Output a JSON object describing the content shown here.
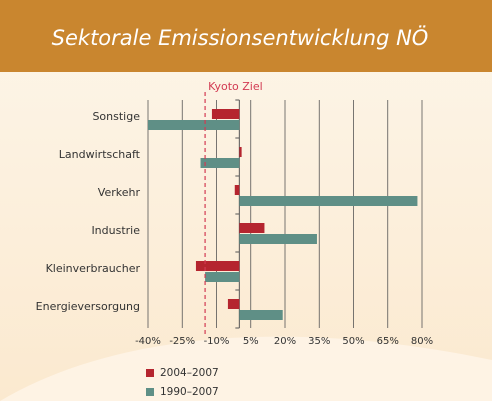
{
  "chart_data": {
    "type": "hbar",
    "title": "Sektorale Emissionsentwicklung NÖ",
    "categories": [
      "Sonstige",
      "Landwirtschaft",
      "Verkehr",
      "Industrie",
      "Kleinverbraucher",
      "Energieversorgung"
    ],
    "series": [
      {
        "name": "2004–2007",
        "color": "#b5252f",
        "values": [
          -12,
          1,
          -2,
          11,
          -19,
          -5
        ]
      },
      {
        "name": "1990–2007",
        "color": "#5f8f86",
        "values": [
          -40,
          -17,
          78,
          34,
          -15,
          19
        ]
      }
    ],
    "xlim": [
      -40,
      80
    ],
    "xticks": [
      {
        "value": -40,
        "label": "-40%"
      },
      {
        "value": -25,
        "label": "-25%"
      },
      {
        "value": -10,
        "label": "-10%"
      },
      {
        "value": 5,
        "label": "5%"
      },
      {
        "value": 20,
        "label": "20%"
      },
      {
        "value": 35,
        "label": "35%"
      },
      {
        "value": 50,
        "label": "50%"
      },
      {
        "value": 65,
        "label": "65%"
      },
      {
        "value": 80,
        "label": "80%"
      }
    ],
    "grid": true,
    "annotation": {
      "label": "Kyoto Ziel",
      "value": -15,
      "color": "#d23a52"
    }
  }
}
